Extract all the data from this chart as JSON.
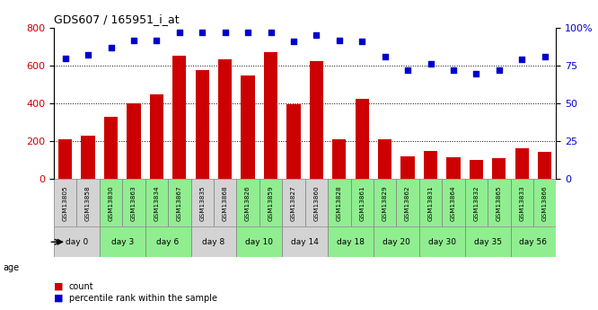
{
  "title": "GDS607 / 165951_i_at",
  "samples": [
    "GSM13805",
    "GSM13858",
    "GSM13830",
    "GSM13863",
    "GSM13834",
    "GSM13867",
    "GSM13835",
    "GSM13868",
    "GSM13826",
    "GSM13859",
    "GSM13827",
    "GSM13860",
    "GSM13828",
    "GSM13861",
    "GSM13829",
    "GSM13862",
    "GSM13831",
    "GSM13864",
    "GSM13832",
    "GSM13865",
    "GSM13833",
    "GSM13866"
  ],
  "bar_values": [
    210,
    230,
    330,
    400,
    450,
    655,
    575,
    635,
    550,
    670,
    395,
    625,
    210,
    425,
    210,
    120,
    150,
    115,
    100,
    110,
    165,
    145
  ],
  "dot_values_pct": [
    80,
    82,
    87,
    92,
    92,
    97,
    97,
    97,
    97,
    97,
    91,
    95,
    92,
    91,
    81,
    72,
    76,
    72,
    70,
    72,
    79,
    81
  ],
  "age_groups": [
    {
      "label": "day 0",
      "start": 0,
      "end": 2,
      "color": "#d3d3d3"
    },
    {
      "label": "day 3",
      "start": 2,
      "end": 4,
      "color": "#90ee90"
    },
    {
      "label": "day 6",
      "start": 4,
      "end": 6,
      "color": "#90ee90"
    },
    {
      "label": "day 8",
      "start": 6,
      "end": 8,
      "color": "#d3d3d3"
    },
    {
      "label": "day 10",
      "start": 8,
      "end": 10,
      "color": "#90ee90"
    },
    {
      "label": "day 14",
      "start": 10,
      "end": 12,
      "color": "#d3d3d3"
    },
    {
      "label": "day 18",
      "start": 12,
      "end": 14,
      "color": "#90ee90"
    },
    {
      "label": "day 20",
      "start": 14,
      "end": 16,
      "color": "#90ee90"
    },
    {
      "label": "day 30",
      "start": 16,
      "end": 18,
      "color": "#90ee90"
    },
    {
      "label": "day 35",
      "start": 18,
      "end": 20,
      "color": "#90ee90"
    },
    {
      "label": "day 56",
      "start": 20,
      "end": 22,
      "color": "#90ee90"
    }
  ],
  "bar_color": "#cc0000",
  "dot_color": "#0000cc",
  "ylim_left": [
    0,
    800
  ],
  "ylim_right": [
    0,
    100
  ],
  "yticks_left": [
    0,
    200,
    400,
    600,
    800
  ],
  "yticks_right": [
    0,
    25,
    50,
    75,
    100
  ],
  "ytick_labels_right": [
    "0",
    "25",
    "50",
    "75",
    "100%"
  ],
  "grid_values": [
    200,
    400,
    600
  ],
  "background_color": "#ffffff"
}
